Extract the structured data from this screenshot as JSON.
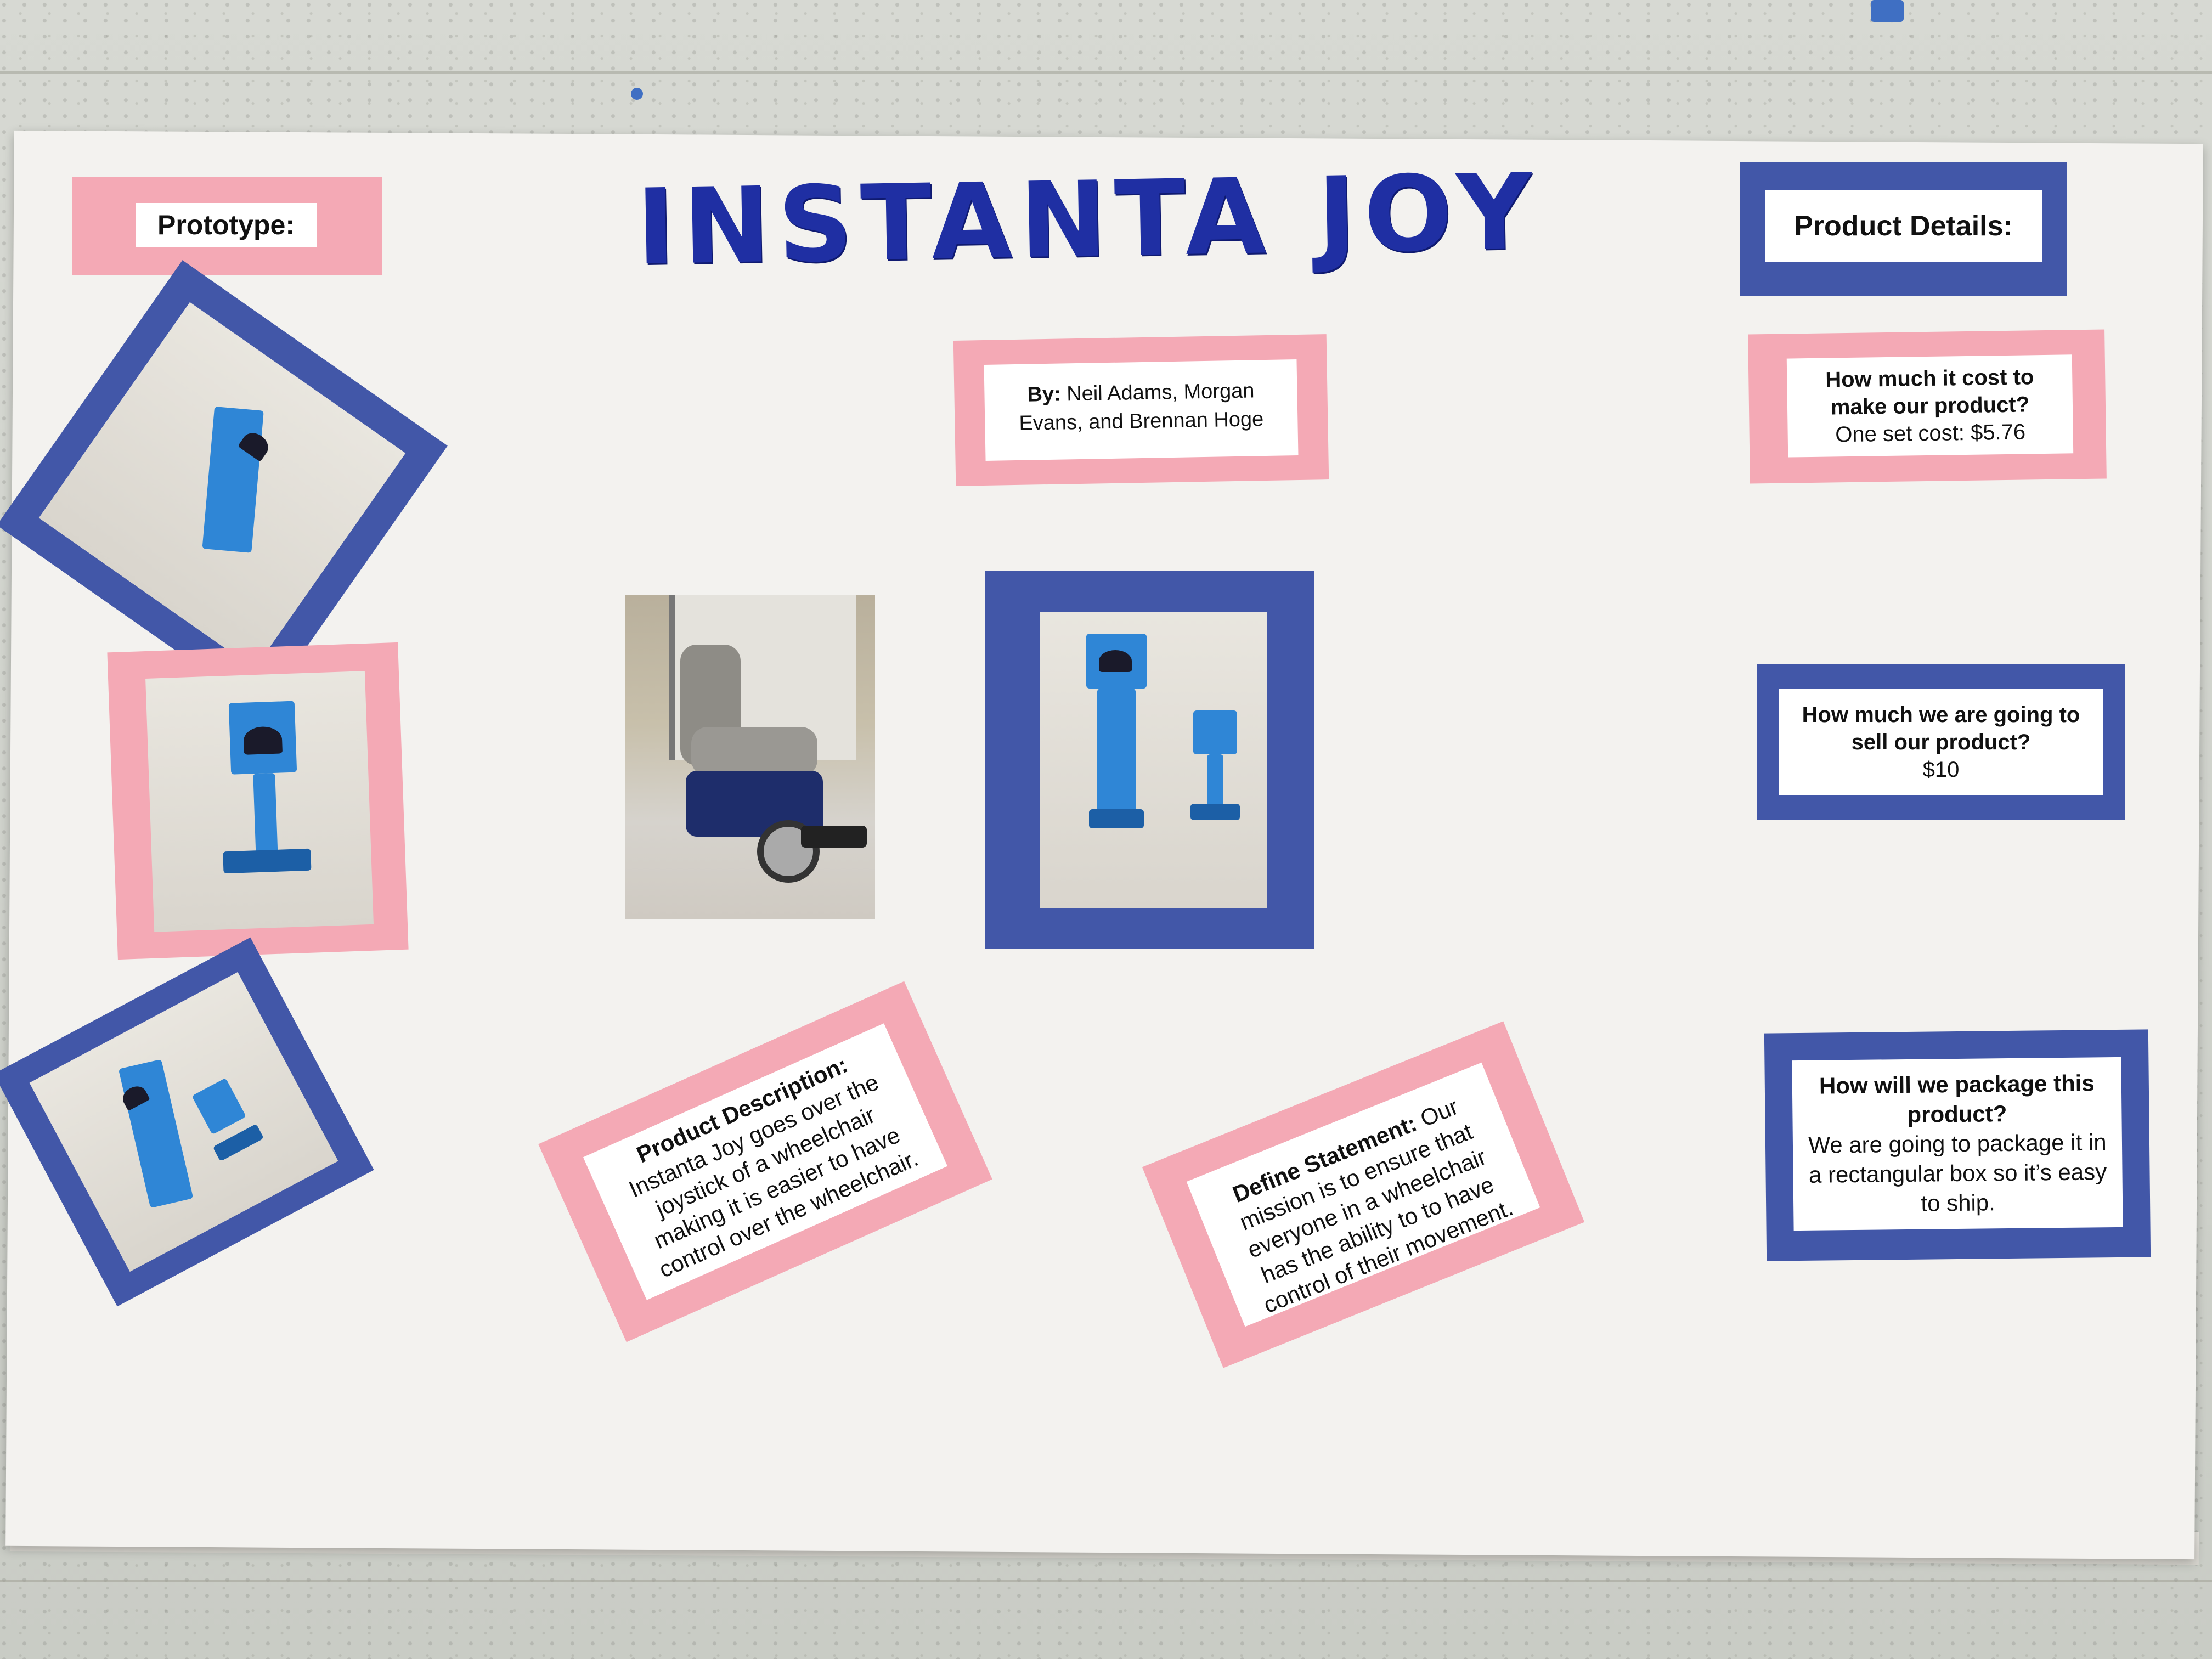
{
  "poster": {
    "title": "INSTANTA JOY",
    "authors_label": "By:",
    "authors_text": "Neil Adams, Morgan Evans, and Brennan Hoge",
    "prototype_label": "Prototype:",
    "product_details_label": "Product Details:",
    "cost_question": "How much it cost to make our product?",
    "cost_answer": "One set cost: $5.76",
    "price_question": "How much we are going to sell our product?",
    "price_answer": "$10",
    "package_question": "How will we package this product?",
    "package_answer": "We are going to package it in a rectangular box so it’s easy to ship.",
    "description_label": "Product Description:",
    "description_text": "Instanta Joy goes over the joystick of a wheelchair making it is easier to have control over the wheelchair.",
    "define_label": "Define Statement:",
    "define_text": "Our mission is to ensure that everyone in a wheelchair has the ability to to have control of their movement."
  },
  "colors": {
    "pink": "#f4a9b5",
    "blue": "#4257a8",
    "title_blue": "#1f2fa3",
    "board": "#f3f2ef",
    "prototype_blue": "#2f86d6"
  }
}
